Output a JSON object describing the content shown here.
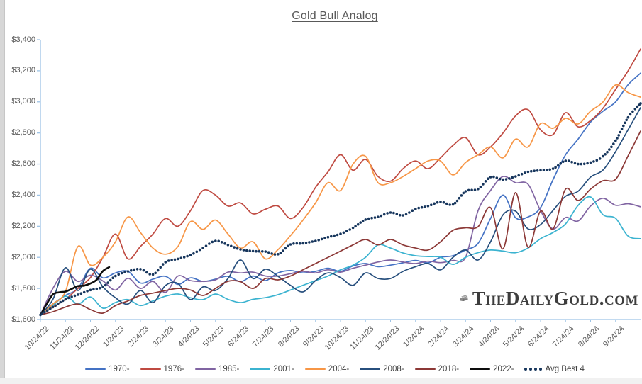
{
  "title": "Gold Bull Analog",
  "y_axis": {
    "ticks": [
      {
        "label": "$1,600",
        "value": 1600
      },
      {
        "label": "$1,800",
        "value": 1800
      },
      {
        "label": "$2,000",
        "value": 2000
      },
      {
        "label": "$2,200",
        "value": 2200
      },
      {
        "label": "$2,400",
        "value": 2400
      },
      {
        "label": "$2,600",
        "value": 2600
      },
      {
        "label": "$2,800",
        "value": 2800
      },
      {
        "label": "$3,000",
        "value": 3000
      },
      {
        "label": "$3,200",
        "value": 3200
      },
      {
        "label": "$3,400",
        "value": 3400
      }
    ]
  },
  "x_axis": {
    "labels": [
      "10/24/22",
      "11/24/22",
      "12/24/22",
      "1/24/23",
      "2/24/23",
      "3/24/23",
      "4/24/23",
      "5/24/23",
      "6/24/23",
      "7/24/23",
      "8/24/23",
      "9/24/23",
      "10/24/23",
      "11/24/23",
      "12/24/23",
      "1/24/24",
      "2/24/24",
      "3/24/24",
      "4/24/24",
      "5/24/24",
      "6/24/24",
      "7/24/24",
      "8/24/24",
      "9/24/24"
    ]
  },
  "legend": [
    {
      "label": "1970-",
      "color": "#4472C4",
      "swatch": "line"
    },
    {
      "label": "1976-",
      "color": "#BF4A41",
      "swatch": "line"
    },
    {
      "label": "1985-",
      "color": "#8064A2",
      "swatch": "line"
    },
    {
      "label": "2001-",
      "color": "#3BB3D0",
      "swatch": "line"
    },
    {
      "label": "2004-",
      "color": "#F79646",
      "swatch": "line"
    },
    {
      "label": "2008-",
      "color": "#274F7D",
      "swatch": "line"
    },
    {
      "label": "2018-",
      "color": "#8C3836",
      "swatch": "line"
    },
    {
      "label": "2022-",
      "color": "#0D0D0D",
      "swatch": "line"
    },
    {
      "label": "Avg Best 4",
      "color": "#16355C",
      "swatch": "dots"
    }
  ],
  "logo": {
    "text": "TheDailyGold.com"
  },
  "colors": {
    "axis": "#9DC3E6",
    "tick_text": "#595959",
    "title_text": "#595959"
  },
  "chart_data": {
    "type": "line",
    "title": "Gold Bull Analog",
    "xlabel": "",
    "ylabel": "",
    "x_unit": "months since 10/24/22 (step 0.5 = half month)",
    "x_tick_labels": [
      "10/24/22",
      "11/24/22",
      "12/24/22",
      "1/24/23",
      "2/24/23",
      "3/24/23",
      "4/24/23",
      "5/24/23",
      "6/24/23",
      "7/24/23",
      "8/24/23",
      "9/24/23",
      "10/24/23",
      "11/24/23",
      "12/24/23",
      "1/24/24",
      "2/24/24",
      "3/24/24",
      "4/24/24",
      "5/24/24",
      "6/24/24",
      "7/24/24",
      "8/24/24",
      "9/24/24"
    ],
    "ylim": [
      1600,
      3400
    ],
    "y_tick_step": 200,
    "grid": false,
    "legend_position": "bottom",
    "series": [
      {
        "name": "1970-",
        "color": "#4472C4",
        "style": "solid",
        "width": 1.7,
        "start": 0,
        "step": 0.5,
        "values": [
          1630,
          1700,
          1755,
          1800,
          1930,
          1868,
          1900,
          1910,
          1835,
          1860,
          1878,
          1826,
          1868,
          1845,
          1860,
          1878,
          1844,
          1880,
          1850,
          1900,
          1915,
          1900,
          1910,
          1930,
          1910,
          1945,
          1960,
          1940,
          1950,
          1965,
          1980,
          1965,
          2000,
          2010,
          2047,
          2090,
          2250,
          2400,
          2255,
          2260,
          2320,
          2500,
          2660,
          2760,
          2870,
          2940,
          3000,
          3110,
          3185
        ]
      },
      {
        "name": "1976-",
        "color": "#BF4A41",
        "style": "solid",
        "width": 1.7,
        "start": 0,
        "step": 0.5,
        "values": [
          1630,
          1680,
          1730,
          1800,
          1870,
          2000,
          2150,
          1990,
          2070,
          2150,
          2250,
          2200,
          2300,
          2430,
          2400,
          2330,
          2350,
          2280,
          2310,
          2330,
          2250,
          2320,
          2450,
          2550,
          2660,
          2560,
          2630,
          2520,
          2490,
          2570,
          2620,
          2570,
          2640,
          2720,
          2770,
          2660,
          2710,
          2800,
          2910,
          2950,
          2820,
          2790,
          2930,
          2840,
          2880,
          2960,
          3080,
          3200,
          3340
        ]
      },
      {
        "name": "1985-",
        "color": "#8064A2",
        "style": "solid",
        "width": 1.7,
        "start": 0,
        "step": 0.5,
        "values": [
          1630,
          1800,
          1910,
          1845,
          1885,
          1848,
          1790,
          1865,
          1800,
          1845,
          1775,
          1880,
          1850,
          1845,
          1855,
          1905,
          1900,
          1905,
          1880,
          1880,
          1895,
          1910,
          1900,
          1920,
          1905,
          1930,
          1950,
          1970,
          1983,
          1970,
          1960,
          1975,
          1966,
          1980,
          2000,
          2300,
          2430,
          2520,
          2480,
          2470,
          2300,
          2183,
          2256,
          2234,
          2330,
          2380,
          2335,
          2345,
          2325
        ]
      },
      {
        "name": "2001-",
        "color": "#3BB3D0",
        "style": "solid",
        "width": 1.7,
        "start": 0,
        "step": 0.5,
        "values": [
          1630,
          1690,
          1750,
          1700,
          1745,
          1673,
          1710,
          1728,
          1690,
          1720,
          1750,
          1764,
          1740,
          1728,
          1764,
          1730,
          1709,
          1730,
          1741,
          1760,
          1790,
          1820,
          1850,
          1880,
          1920,
          1950,
          2000,
          2080,
          2060,
          2028,
          2010,
          2005,
          2001,
          1955,
          2000,
          2030,
          2047,
          2040,
          2030,
          2060,
          2120,
          2160,
          2215,
          2334,
          2388,
          2274,
          2251,
          2137,
          2120
        ]
      },
      {
        "name": "2004-",
        "color": "#F79646",
        "style": "solid",
        "width": 1.7,
        "start": 0,
        "step": 0.5,
        "values": [
          1630,
          1700,
          1780,
          2070,
          1950,
          2000,
          2100,
          2260,
          2160,
          2060,
          2020,
          2070,
          2230,
          2180,
          2240,
          2150,
          2060,
          2100,
          1990,
          2050,
          2140,
          2240,
          2350,
          2480,
          2430,
          2600,
          2650,
          2480,
          2480,
          2520,
          2570,
          2620,
          2620,
          2530,
          2610,
          2660,
          2710,
          2640,
          2760,
          2710,
          2860,
          2830,
          2894,
          2858,
          2940,
          3000,
          3109,
          3060,
          3030
        ]
      },
      {
        "name": "2008-",
        "color": "#274F7D",
        "style": "solid",
        "width": 1.7,
        "start": 0,
        "step": 0.5,
        "values": [
          1630,
          1730,
          1933,
          1787,
          1924,
          1810,
          1740,
          1700,
          1787,
          1709,
          1819,
          1832,
          1728,
          1810,
          1787,
          1864,
          1983,
          1864,
          1924,
          1878,
          1820,
          1778,
          1850,
          1900,
          1870,
          1820,
          1900,
          1864,
          1864,
          1910,
          1940,
          1960,
          1920,
          2000,
          2047,
          1983,
          2100,
          2274,
          2297,
          2183,
          2211,
          2302,
          2393,
          2425,
          2516,
          2562,
          2680,
          2821,
          2963
        ]
      },
      {
        "name": "2018-",
        "color": "#8C3836",
        "style": "solid",
        "width": 1.7,
        "start": 0,
        "step": 0.5,
        "values": [
          1630,
          1650,
          1680,
          1700,
          1664,
          1641,
          1690,
          1720,
          1755,
          1770,
          1787,
          1800,
          1790,
          1755,
          1800,
          1846,
          1844,
          1800,
          1864,
          1855,
          1880,
          1920,
          1960,
          2000,
          2040,
          2080,
          2115,
          2080,
          2115,
          2080,
          2060,
          2047,
          2100,
          2174,
          2190,
          2197,
          2320,
          2055,
          2416,
          2065,
          2297,
          2183,
          2439,
          2366,
          2439,
          2493,
          2502,
          2653,
          2812
        ]
      },
      {
        "name": "2022-",
        "color": "#0D0D0D",
        "style": "solid",
        "width": 2.6,
        "start": 0,
        "step": 0.25,
        "values": [
          1628,
          1700,
          1762,
          1775,
          1780,
          1797,
          1815,
          1818,
          1832,
          1856,
          1912,
          1937
        ]
      },
      {
        "name": "Avg Best 4",
        "color": "#16355C",
        "style": "dots",
        "width": 1.8,
        "start": 0,
        "step": 0.5,
        "values": [
          1630,
          1680,
          1730,
          1760,
          1790,
          1810,
          1880,
          1910,
          1924,
          1890,
          1969,
          1990,
          2015,
          2060,
          2106,
          2080,
          2051,
          2040,
          2037,
          2020,
          2083,
          2090,
          2106,
          2130,
          2151,
          2190,
          2243,
          2260,
          2288,
          2270,
          2311,
          2330,
          2357,
          2340,
          2425,
          2440,
          2516,
          2500,
          2520,
          2550,
          2560,
          2570,
          2621,
          2600,
          2610,
          2650,
          2750,
          2900,
          2990
        ]
      }
    ]
  }
}
